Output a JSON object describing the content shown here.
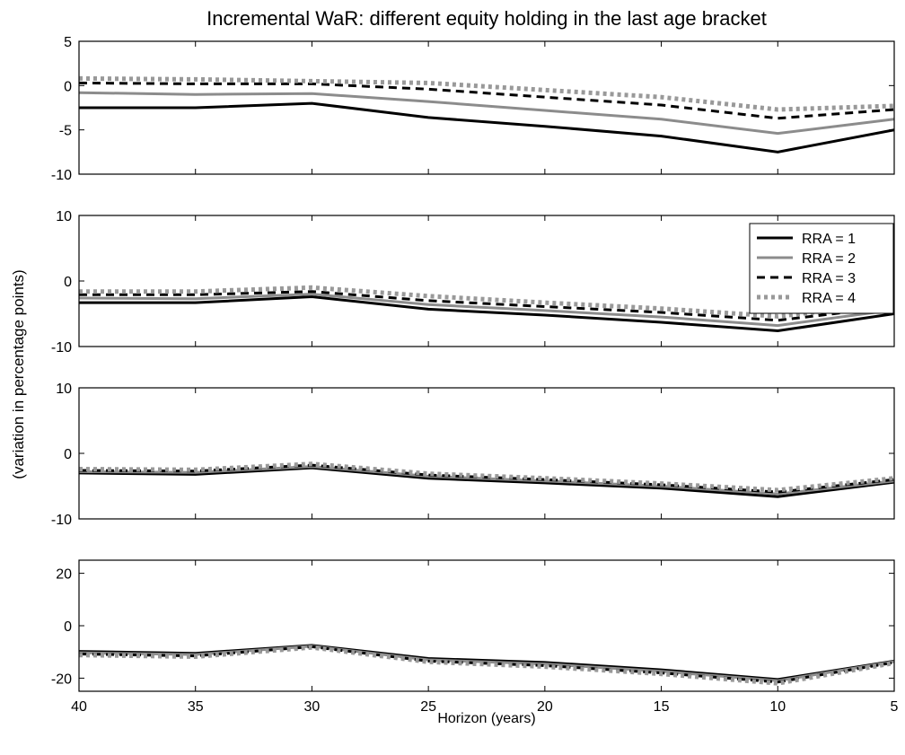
{
  "chart_data": {
    "type": "line",
    "title": "Incremental WaR: different equity holding in the last age bracket",
    "ylabel": "(variation in percentage points)",
    "xlabel": "Horizon (years)",
    "x": [
      40,
      35,
      30,
      25,
      20,
      15,
      10,
      5
    ],
    "xlim": [
      40,
      5
    ],
    "xticks": [
      40,
      35,
      30,
      25,
      20,
      15,
      10,
      5
    ],
    "grid": false,
    "legend_placement": "top-right of second panel",
    "series_styles": [
      {
        "name": "RRA = 1",
        "color": "#000000",
        "dash": "solid",
        "width": 3
      },
      {
        "name": "RRA = 2",
        "color": "#8c8c8c",
        "dash": "solid",
        "width": 3
      },
      {
        "name": "RRA = 3",
        "color": "#000000",
        "dash": "dashed",
        "width": 3
      },
      {
        "name": "RRA = 4",
        "color": "#999999",
        "dash": "dotted",
        "width": 5
      }
    ],
    "panels": [
      {
        "ylim": [
          -10,
          5
        ],
        "yticks": [
          5,
          0,
          -5,
          -10
        ],
        "series": [
          {
            "name": "RRA = 1",
            "values": [
              -2.5,
              -2.5,
              -2.0,
              -3.6,
              -4.6,
              -5.7,
              -7.5,
              -5.0
            ]
          },
          {
            "name": "RRA = 2",
            "values": [
              -0.8,
              -1.0,
              -0.9,
              -1.8,
              -2.8,
              -3.8,
              -5.4,
              -3.8
            ]
          },
          {
            "name": "RRA = 3",
            "values": [
              0.3,
              0.2,
              0.2,
              -0.4,
              -1.3,
              -2.2,
              -3.7,
              -2.7
            ]
          },
          {
            "name": "RRA = 4",
            "values": [
              0.8,
              0.7,
              0.5,
              0.3,
              -0.5,
              -1.3,
              -2.7,
              -2.3
            ]
          }
        ]
      },
      {
        "ylim": [
          -10,
          10
        ],
        "yticks": [
          10,
          0,
          -10
        ],
        "series": [
          {
            "name": "RRA = 1",
            "values": [
              -3.3,
              -3.3,
              -2.4,
              -4.3,
              -5.2,
              -6.3,
              -7.6,
              -5.0
            ]
          },
          {
            "name": "RRA = 2",
            "values": [
              -2.6,
              -2.7,
              -2.0,
              -3.6,
              -4.5,
              -5.5,
              -6.8,
              -4.4
            ]
          },
          {
            "name": "RRA = 3",
            "values": [
              -2.1,
              -2.1,
              -1.6,
              -3.0,
              -3.9,
              -4.8,
              -6.0,
              -3.9
            ]
          },
          {
            "name": "RRA = 4",
            "values": [
              -1.6,
              -1.6,
              -1.0,
              -2.3,
              -3.3,
              -4.2,
              -5.4,
              -3.4
            ]
          }
        ]
      },
      {
        "ylim": [
          -10,
          10
        ],
        "yticks": [
          10,
          0,
          -10
        ],
        "series": [
          {
            "name": "RRA = 1",
            "values": [
              -3.0,
              -3.2,
              -2.2,
              -3.8,
              -4.5,
              -5.3,
              -6.6,
              -4.4
            ]
          },
          {
            "name": "RRA = 2",
            "values": [
              -2.8,
              -2.9,
              -2.0,
              -3.5,
              -4.2,
              -5.0,
              -6.2,
              -4.2
            ]
          },
          {
            "name": "RRA = 3",
            "values": [
              -2.6,
              -2.7,
              -1.8,
              -3.3,
              -4.0,
              -4.8,
              -5.9,
              -4.0
            ]
          },
          {
            "name": "RRA = 4",
            "values": [
              -2.4,
              -2.5,
              -1.6,
              -3.1,
              -3.8,
              -4.6,
              -5.6,
              -3.8
            ]
          }
        ]
      },
      {
        "ylim": [
          -25,
          25
        ],
        "yticks": [
          20,
          0,
          -20
        ],
        "series": [
          {
            "name": "RRA = 1",
            "values": [
              -9.8,
              -10.5,
              -7.5,
              -12.5,
              -14.0,
              -16.8,
              -20.5,
              -13.5
            ]
          },
          {
            "name": "RRA = 2",
            "values": [
              -10.3,
              -11.0,
              -7.8,
              -13.0,
              -14.6,
              -17.4,
              -21.0,
              -13.7
            ]
          },
          {
            "name": "RRA = 3",
            "values": [
              -10.8,
              -11.5,
              -8.0,
              -13.5,
              -15.2,
              -18.0,
              -21.5,
              -14.0
            ]
          },
          {
            "name": "RRA = 4",
            "values": [
              -11.2,
              -11.8,
              -8.3,
              -13.8,
              -15.6,
              -18.4,
              -22.0,
              -14.2
            ]
          }
        ]
      }
    ]
  }
}
